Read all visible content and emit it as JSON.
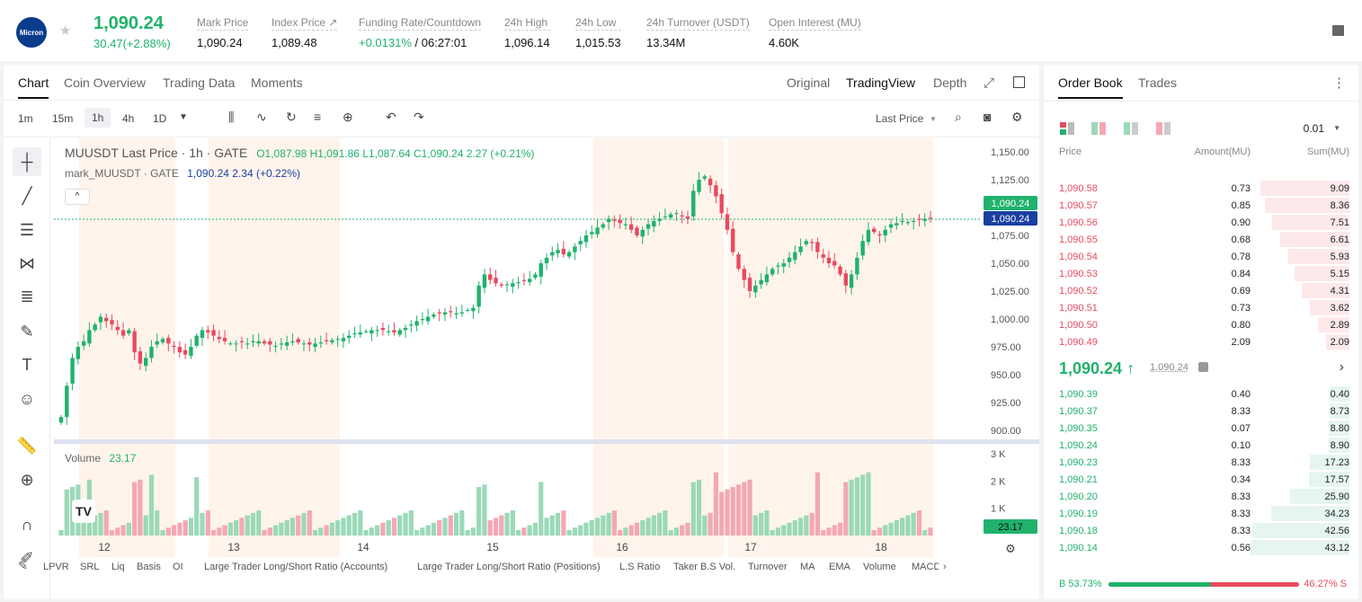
{
  "header": {
    "logo_text": "Micron",
    "last_price": "1,090.24",
    "change": "30.47(+2.88%)",
    "stats": [
      {
        "label": "Mark Price",
        "value": "1,090.24"
      },
      {
        "label": "Index Price ↗",
        "value": "1,089.48"
      },
      {
        "label": "Funding Rate/Countdown",
        "value_green": "+0.0131%",
        "value": " / 06:27:01"
      },
      {
        "label": "24h High",
        "value": "1,096.14"
      },
      {
        "label": "24h Low",
        "value": "1,015.53"
      },
      {
        "label": "24h Turnover (USDT)",
        "value": "13.34M"
      },
      {
        "label": "Open Interest (MU)",
        "value": "4.60K"
      }
    ]
  },
  "chart_tabs": [
    "Chart",
    "Coin Overview",
    "Trading Data",
    "Moments"
  ],
  "view_tabs": [
    "Original",
    "TradingView",
    "Depth"
  ],
  "intervals": [
    "1m",
    "15m",
    "1h",
    "4h",
    "1D"
  ],
  "price_type": "Last Price",
  "chart_info": {
    "symbol_line": "MUUSDT Last Price · 1h · GATE",
    "ohlc": "O1,087.98 H1,091.86 L1,087.64 C1,090.24 2.27 (+0.21%)",
    "mark_line": "mark_MUUSDT · GATE",
    "mark_values": "1,090.24 2.34 (+0.22%)",
    "volume_label": "Volume",
    "volume_value": "23.17"
  },
  "chart_data": {
    "type": "candlestick",
    "x_labels": [
      "12",
      "13",
      "14",
      "15",
      "16",
      "17",
      "18"
    ],
    "y_ticks": [
      "1,150.00",
      "1,125.00",
      "1,075.00",
      "1,050.00",
      "1,025.00",
      "1,000.00",
      "975.00",
      "950.00",
      "925.00",
      "900.00"
    ],
    "y_range": [
      900,
      1150
    ],
    "volume_ticks": [
      "3 K",
      "2 K",
      "1 K"
    ],
    "last_price_tag": "1,090.24",
    "mark_price_tag": "1,090.24",
    "volume_tag": "23.17",
    "closes": [
      912,
      940,
      965,
      975,
      980,
      990,
      995,
      1002,
      998,
      995,
      990,
      985,
      990,
      970,
      960,
      965,
      975,
      980,
      982,
      978,
      975,
      970,
      968,
      975,
      985,
      990,
      988,
      985,
      982,
      980,
      978,
      978,
      979,
      978,
      980,
      980,
      978,
      977,
      976,
      978,
      979,
      980,
      979,
      978,
      977,
      978,
      979,
      980,
      981,
      982,
      983,
      985,
      987,
      988,
      989,
      990,
      990,
      990,
      989,
      988,
      990,
      992,
      995,
      998,
      1000,
      1002,
      1004,
      1005,
      1006,
      1006,
      1005,
      1006,
      1008,
      1010,
      1030,
      1040,
      1035,
      1032,
      1030,
      1031,
      1032,
      1033,
      1034,
      1036,
      1040,
      1050,
      1055,
      1060,
      1062,
      1058,
      1060,
      1065,
      1070,
      1075,
      1078,
      1082,
      1085,
      1090,
      1088,
      1086,
      1085,
      1080,
      1075,
      1080,
      1085,
      1088,
      1090,
      1092,
      1094,
      1095,
      1092,
      1090,
      1115,
      1125,
      1128,
      1120,
      1110,
      1095,
      1080,
      1060,
      1045,
      1035,
      1025,
      1030,
      1035,
      1040,
      1045,
      1048,
      1050,
      1055,
      1060,
      1065,
      1070,
      1068,
      1060,
      1055,
      1050,
      1048,
      1040,
      1030,
      1040,
      1055,
      1070,
      1080,
      1078,
      1075,
      1080,
      1085,
      1086,
      1088,
      1087,
      1088,
      1089,
      1090,
      1090.24
    ]
  },
  "left_tools": [
    "crosshair-icon",
    "trendline-icon",
    "hlines-icon",
    "pattern-icon",
    "fib-icon",
    "brush-icon",
    "text-icon",
    "emoji-icon",
    "ruler-icon",
    "zoom-icon",
    "magnet-icon",
    "pencil-icon"
  ],
  "bottom_indicators": [
    "LPVR",
    "SRL",
    "Liq",
    "Basis",
    "OI",
    "Large Trader Long/Short Ratio (Accounts)",
    "Large Trader Long/Short Ratio (Positions)",
    "L.S Ratio",
    "Taker B.S Vol.",
    "Turnover",
    "MA",
    "EMA",
    "Volume",
    "MACD"
  ],
  "orderbook": {
    "tabs": [
      "Order Book",
      "Trades"
    ],
    "precision": "0.01",
    "headers": [
      "Price",
      "Amount(MU)",
      "Sum(MU)"
    ],
    "asks": [
      {
        "price": "1,090.58",
        "amount": "0.73",
        "sum": "9.09",
        "depth": 0.9
      },
      {
        "price": "1,090.57",
        "amount": "0.85",
        "sum": "8.36",
        "depth": 0.85
      },
      {
        "price": "1,090.56",
        "amount": "0.90",
        "sum": "7.51",
        "depth": 0.78
      },
      {
        "price": "1,090.55",
        "amount": "0.68",
        "sum": "6.61",
        "depth": 0.7
      },
      {
        "price": "1,090.54",
        "amount": "0.78",
        "sum": "5.93",
        "depth": 0.62
      },
      {
        "price": "1,090.53",
        "amount": "0.84",
        "sum": "5.15",
        "depth": 0.55
      },
      {
        "price": "1,090.52",
        "amount": "0.69",
        "sum": "4.31",
        "depth": 0.48
      },
      {
        "price": "1,090.51",
        "amount": "0.73",
        "sum": "3.62",
        "depth": 0.4
      },
      {
        "price": "1,090.50",
        "amount": "0.80",
        "sum": "2.89",
        "depth": 0.32
      },
      {
        "price": "1,090.49",
        "amount": "2.09",
        "sum": "2.09",
        "depth": 0.24
      }
    ],
    "mid_price": "1,090.24 ↑",
    "mid_ref": "1,090.24",
    "bids": [
      {
        "price": "1,090.39",
        "amount": "0.40",
        "sum": "0.40",
        "depth": 0.2
      },
      {
        "price": "1,090.37",
        "amount": "8.33",
        "sum": "8.73",
        "depth": 0.2
      },
      {
        "price": "1,090.35",
        "amount": "0.07",
        "sum": "8.80",
        "depth": 0.21
      },
      {
        "price": "1,090.24",
        "amount": "0.10",
        "sum": "8.90",
        "depth": 0.21
      },
      {
        "price": "1,090.23",
        "amount": "8.33",
        "sum": "17.23",
        "depth": 0.4
      },
      {
        "price": "1,090.21",
        "amount": "0.34",
        "sum": "17.57",
        "depth": 0.41
      },
      {
        "price": "1,090.20",
        "amount": "8.33",
        "sum": "25.90",
        "depth": 0.6
      },
      {
        "price": "1,090.19",
        "amount": "8.33",
        "sum": "34.23",
        "depth": 0.79
      },
      {
        "price": "1,090.18",
        "amount": "8.33",
        "sum": "42.56",
        "depth": 0.98
      },
      {
        "price": "1,090.14",
        "amount": "0.56",
        "sum": "43.12",
        "depth": 1.0
      }
    ],
    "buy_ratio": "B 53.73%",
    "sell_ratio": "46.27% S",
    "buy_fraction": 0.5373
  },
  "colors": {
    "up": "#20b26c",
    "down": "#e84a5f",
    "accent": "#1a3fa0"
  }
}
